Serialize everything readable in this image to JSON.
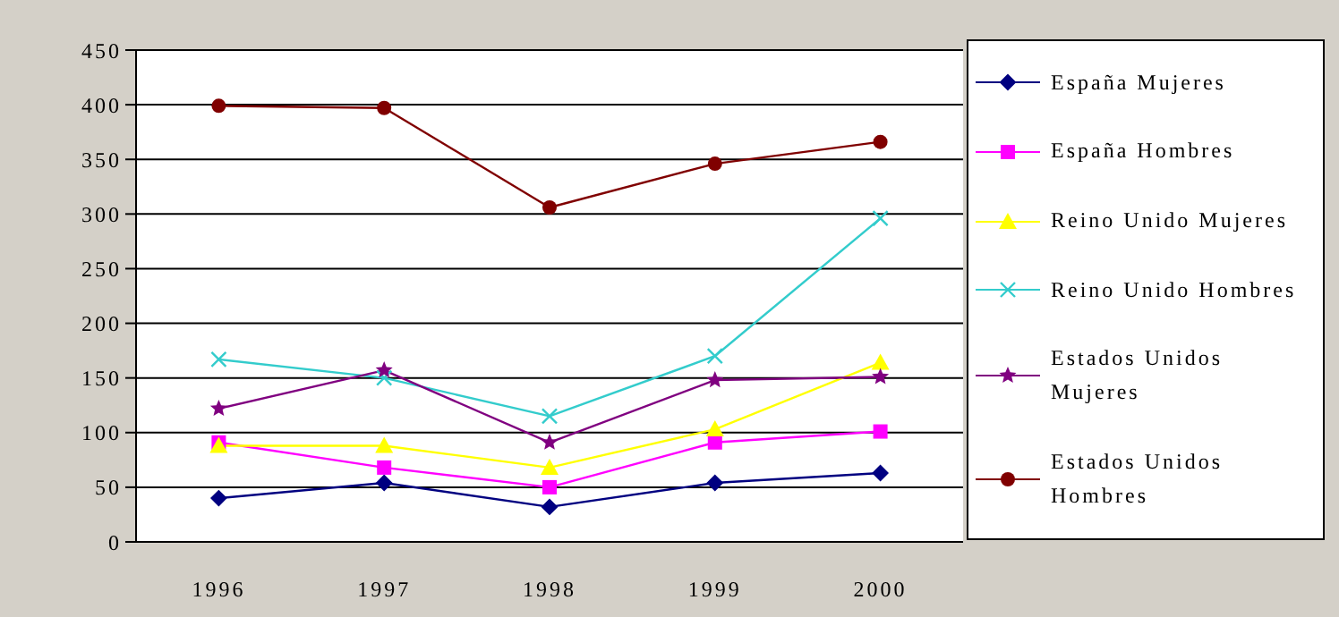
{
  "chart_data": {
    "type": "line",
    "categories": [
      "1996",
      "1997",
      "1998",
      "1999",
      "2000"
    ],
    "series": [
      {
        "name": "España Mujeres",
        "color": "#000080",
        "marker": "diamond",
        "values": [
          40,
          54,
          32,
          54,
          63
        ]
      },
      {
        "name": "España Hombres",
        "color": "#ff00ff",
        "marker": "square",
        "values": [
          91,
          68,
          50,
          91,
          101
        ]
      },
      {
        "name": "Reino Unido Mujeres",
        "color": "#ffff00",
        "marker": "triangle",
        "values": [
          88,
          88,
          68,
          103,
          164
        ]
      },
      {
        "name": "Reino Unido Hombres",
        "color": "#33cccc",
        "marker": "cross",
        "values": [
          167,
          150,
          115,
          170,
          296
        ]
      },
      {
        "name": "Estados Unidos Mujeres",
        "color": "#800080",
        "marker": "star",
        "values": [
          122,
          157,
          91,
          148,
          151
        ]
      },
      {
        "name": "Estados Unidos Hombres",
        "color": "#800000",
        "marker": "circle",
        "values": [
          399,
          397,
          306,
          346,
          366
        ]
      }
    ],
    "ylim": [
      0,
      450
    ],
    "yticks": [
      0,
      50,
      100,
      150,
      200,
      250,
      300,
      350,
      400,
      450
    ],
    "grid": "y",
    "legend": "right"
  }
}
